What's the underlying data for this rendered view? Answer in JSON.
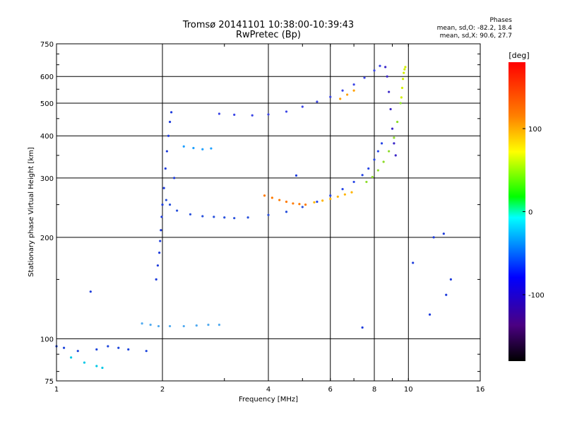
{
  "header": {
    "title": "Tromsø 20141101 10:38:00-10:39:43",
    "subtitle": "RwPretec (Bp)"
  },
  "phase_panel": {
    "heading": "Phases",
    "line_o": "mean, sd,O: -82.2, 18.4",
    "line_x": "mean, sd,X:  90.6, 27.7"
  },
  "colorbar": {
    "label": "[deg]",
    "ticks": [
      "100",
      "0",
      "-100"
    ],
    "tick_values": [
      100,
      0,
      -100
    ],
    "range": [
      -180,
      180
    ]
  },
  "chart_data": {
    "type": "scatter",
    "title": "Tromsø 20141101 10:38:00-10:39:43",
    "subtitle": "RwPretec (Bp)",
    "xlabel": "Frequency [MHz]",
    "ylabel": "Stationary phase Virtual Height [km]",
    "x_scale": "log",
    "y_scale": "log",
    "xlim": [
      1,
      16
    ],
    "ylim": [
      75,
      750
    ],
    "x_ticks": [
      1,
      2,
      4,
      6,
      8,
      10,
      16
    ],
    "x_tick_labels": [
      "1",
      "2",
      "4",
      "6",
      "8",
      "10",
      "16"
    ],
    "y_ticks": [
      75,
      100,
      200,
      300,
      400,
      500,
      600,
      750
    ],
    "y_tick_labels": [
      "75",
      "100",
      "200",
      "300",
      "400",
      "500",
      "600",
      "750"
    ],
    "color_encoding": "phase [deg]",
    "series": [
      {
        "color": "#1e3cdc",
        "x": [
          1.92,
          1.94,
          1.96,
          1.97,
          1.98,
          1.99,
          2.0,
          2.02,
          2.04,
          2.06,
          2.08,
          2.1,
          2.12,
          2.16
        ],
        "y": [
          150,
          165,
          180,
          195,
          210,
          230,
          250,
          280,
          320,
          360,
          400,
          440,
          470,
          300
        ]
      },
      {
        "color": "#2850dc",
        "x": [
          2.05,
          2.1,
          2.2,
          2.4,
          2.6,
          2.8,
          3.0,
          3.2,
          3.5,
          4.0,
          4.5,
          5.0
        ],
        "y": [
          258,
          250,
          240,
          234,
          231,
          230,
          229,
          228,
          229,
          233,
          238,
          246
        ]
      },
      {
        "color": "#2846e6",
        "x": [
          5.5,
          6.0,
          6.5,
          7.0,
          7.4,
          7.7,
          8.0,
          8.2,
          8.4
        ],
        "y": [
          255,
          266,
          278,
          292,
          306,
          320,
          340,
          360,
          380
        ]
      },
      {
        "color": "#3c46e6",
        "x": [
          2.9,
          3.2,
          3.6,
          4.0,
          4.5,
          5.0,
          5.5,
          6.0,
          6.5,
          7.0,
          7.5,
          8.0,
          8.3
        ],
        "y": [
          465,
          462,
          460,
          463,
          472,
          488,
          505,
          522,
          545,
          568,
          595,
          625,
          645
        ]
      },
      {
        "color": "#3c28c8",
        "x": [
          8.6,
          8.7,
          8.8,
          8.9,
          9.0,
          9.1,
          9.2
        ],
        "y": [
          640,
          600,
          540,
          480,
          420,
          380,
          350
        ]
      },
      {
        "color": "#ff7a00",
        "x": [
          3.9,
          4.1,
          4.3,
          4.5,
          4.7,
          4.9,
          5.1
        ],
        "y": [
          266,
          262,
          258,
          255,
          252,
          251,
          250
        ]
      },
      {
        "color": "#ffb400",
        "x": [
          5.4,
          5.7,
          6.0,
          6.3,
          6.6,
          6.9
        ],
        "y": [
          254,
          257,
          260,
          264,
          268,
          272
        ]
      },
      {
        "color": "#8cdc28",
        "x": [
          7.6,
          7.9,
          8.2,
          8.5,
          8.8,
          9.1,
          9.3,
          9.5
        ],
        "y": [
          292,
          302,
          316,
          335,
          360,
          395,
          440,
          500
        ]
      },
      {
        "color": "#d2f000",
        "x": [
          9.55,
          9.6,
          9.65,
          9.7,
          9.75,
          9.8
        ],
        "y": [
          520,
          555,
          590,
          615,
          630,
          640
        ]
      },
      {
        "color": "#50aaf0",
        "x": [
          1.75,
          1.85,
          1.95,
          2.1,
          2.3,
          2.5,
          2.7,
          2.9
        ],
        "y": [
          111,
          110,
          109,
          109,
          109,
          109.5,
          110,
          110
        ]
      },
      {
        "color": "#1e46dc",
        "x": [
          1.0,
          1.05,
          1.15,
          1.3,
          1.4,
          1.5,
          1.6,
          1.8
        ],
        "y": [
          95,
          94,
          92,
          93,
          95,
          94,
          93,
          92
        ]
      },
      {
        "color": "#00c8e6",
        "x": [
          1.1,
          1.2,
          1.3,
          1.35
        ],
        "y": [
          88,
          85,
          83,
          82
        ]
      },
      {
        "color": "#ffa000",
        "x": [
          6.4,
          6.7,
          7.0
        ],
        "y": [
          515,
          530,
          545
        ]
      },
      {
        "color": "#1ea0ff",
        "x": [
          2.3,
          2.45,
          2.6,
          2.75
        ],
        "y": [
          372,
          368,
          365,
          367
        ]
      },
      {
        "color": "#1e3cdc",
        "x": [
          1.25,
          4.8,
          7.4,
          10.3,
          11.5,
          12.8,
          13.2,
          12.6,
          11.8
        ],
        "y": [
          138,
          305,
          108,
          168,
          118,
          135,
          150,
          205,
          200
        ]
      }
    ]
  }
}
